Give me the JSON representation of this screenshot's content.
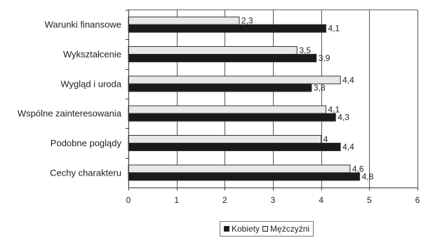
{
  "chart_data": {
    "type": "bar",
    "orientation": "horizontal",
    "categories": [
      "Warunki finansowe",
      "Wykształcenie",
      "Wygląd i uroda",
      "Wspólne zainteresowania",
      "Podobne poglądy",
      "Cechy charakteru"
    ],
    "series": [
      {
        "name": "Mężczyźni",
        "color": "#e8e8e8",
        "values": [
          2.3,
          3.5,
          4.4,
          4.1,
          4,
          4.6
        ],
        "labels": [
          "2,3",
          "3,5",
          "4,4",
          "4,1",
          "4",
          "4,6"
        ]
      },
      {
        "name": "Kobiety",
        "color": "#1a1a1a",
        "values": [
          4.1,
          3.9,
          3.8,
          4.3,
          4.4,
          4.8
        ],
        "labels": [
          "4,1",
          "3,9",
          "3,8",
          "4,3",
          "4,4",
          "4,8"
        ]
      }
    ],
    "xlim": [
      0,
      6
    ],
    "xticks": [
      "0",
      "1",
      "2",
      "3",
      "4",
      "5",
      "6"
    ],
    "grid": "vertical",
    "legend": "bottom",
    "legend_order": [
      "Kobiety",
      "Mężczyźni"
    ]
  }
}
